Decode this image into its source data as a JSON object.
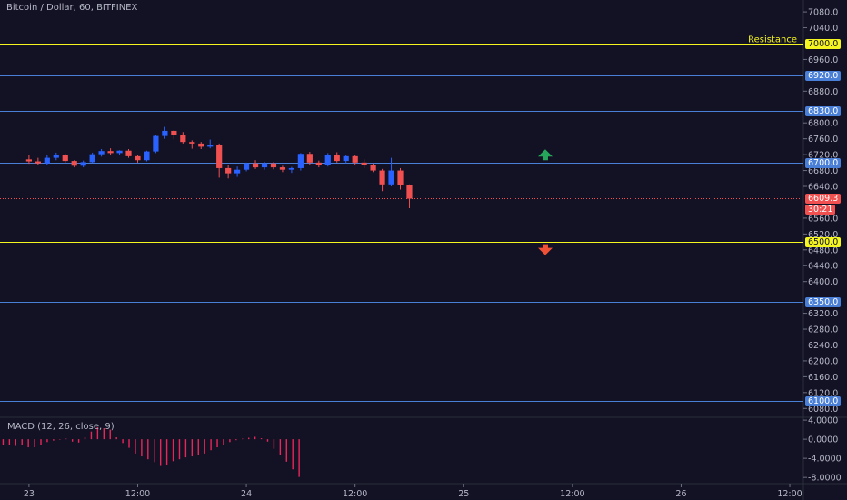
{
  "header": {
    "title": "Bitcoin / Dollar, 60, BITFINEX"
  },
  "macd": {
    "label": "MACD (12, 26, close, 9)",
    "ticks": [
      "4.0000",
      "0.0000",
      "-4.0000",
      "-8.0000"
    ],
    "tick_values": [
      4,
      0,
      -4,
      -8
    ],
    "histogram": [
      -1.3,
      -1.3,
      -1.3,
      -1.4,
      -1.2,
      -1.7,
      -1.7,
      -1.2,
      -0.6,
      -0.3,
      -0.1,
      0.1,
      -0.5,
      -0.7,
      0.4,
      1.6,
      2.5,
      2.3,
      2.0,
      0.4,
      -0.8,
      -1.8,
      -3.0,
      -3.6,
      -4.2,
      -4.8,
      -5.6,
      -5.3,
      -4.6,
      -4.2,
      -3.8,
      -3.6,
      -3.3,
      -3.0,
      -2.3,
      -1.7,
      -1.2,
      -0.6,
      -0.2,
      0.1,
      0.3,
      0.5,
      0.2,
      -0.5,
      -2.0,
      -3.3,
      -4.7,
      -6.3,
      -7.9
    ],
    "color": "#e6275a"
  },
  "colors": {
    "background": "#131225",
    "up": "#2962ff",
    "down": "#f05050",
    "resistance": "#f5f520",
    "level": "#4a7fd8",
    "arrow_up": "#26a65b",
    "arrow_down": "#ef5036"
  },
  "chart_data": {
    "type": "candlestick",
    "title": "Bitcoin / Dollar, 60, BITFINEX",
    "y_ticks": [
      "7080.0",
      "7040.0",
      "6960.0",
      "6880.0",
      "6800.0",
      "6760.0",
      "6720.0",
      "6680.0",
      "6640.0",
      "6560.0",
      "6520.0",
      "6480.0",
      "6440.0",
      "6400.0",
      "6320.0",
      "6280.0",
      "6240.0",
      "6200.0",
      "6160.0",
      "6120.0",
      "6080.0"
    ],
    "y_tick_values": [
      7080,
      7040,
      6960,
      6880,
      6800,
      6760,
      6720,
      6680,
      6640,
      6560,
      6520,
      6480,
      6440,
      6400,
      6320,
      6280,
      6240,
      6200,
      6160,
      6120,
      6080
    ],
    "ylim": [
      6060,
      7110
    ],
    "x_ticks": [
      "23",
      "12:00",
      "24",
      "12:00",
      "25",
      "12:00",
      "26",
      "12:00"
    ],
    "x_tick_values": [
      0,
      12,
      24,
      36,
      48,
      60,
      72,
      84
    ],
    "xlim": [
      -3.2,
      85.5
    ],
    "horizontal_lines": [
      {
        "price": 7000,
        "label": "7000.0",
        "kind": "resistance",
        "note": "Resistance"
      },
      {
        "price": 6920,
        "label": "6920.0",
        "kind": "level"
      },
      {
        "price": 6830,
        "label": "6830.0",
        "kind": "level"
      },
      {
        "price": 6700,
        "label": "6700.0",
        "kind": "level"
      },
      {
        "price": 6500,
        "label": "6500.0",
        "kind": "resistance"
      },
      {
        "price": 6350,
        "label": "6350.0",
        "kind": "level"
      },
      {
        "price": 6100,
        "label": "6100.0",
        "kind": "level"
      }
    ],
    "last_price": {
      "price": 6609.3,
      "label": "6609.3",
      "countdown": "30:21"
    },
    "arrows": [
      {
        "x": 57,
        "price": 6715,
        "direction": "up"
      },
      {
        "x": 57,
        "price": 6485,
        "direction": "down"
      }
    ],
    "candles": [
      {
        "o": 6708,
        "h": 6718,
        "l": 6697,
        "c": 6703
      },
      {
        "o": 6703,
        "h": 6712,
        "l": 6693,
        "c": 6698
      },
      {
        "o": 6698,
        "h": 6720,
        "l": 6695,
        "c": 6712
      },
      {
        "o": 6712,
        "h": 6725,
        "l": 6706,
        "c": 6718
      },
      {
        "o": 6718,
        "h": 6722,
        "l": 6700,
        "c": 6704
      },
      {
        "o": 6704,
        "h": 6706,
        "l": 6688,
        "c": 6692
      },
      {
        "o": 6692,
        "h": 6705,
        "l": 6688,
        "c": 6701
      },
      {
        "o": 6701,
        "h": 6725,
        "l": 6699,
        "c": 6721
      },
      {
        "o": 6721,
        "h": 6734,
        "l": 6715,
        "c": 6729
      },
      {
        "o": 6729,
        "h": 6736,
        "l": 6718,
        "c": 6724
      },
      {
        "o": 6724,
        "h": 6731,
        "l": 6719,
        "c": 6730
      },
      {
        "o": 6730,
        "h": 6734,
        "l": 6712,
        "c": 6716
      },
      {
        "o": 6716,
        "h": 6719,
        "l": 6700,
        "c": 6706
      },
      {
        "o": 6706,
        "h": 6730,
        "l": 6703,
        "c": 6728
      },
      {
        "o": 6728,
        "h": 6770,
        "l": 6724,
        "c": 6767
      },
      {
        "o": 6767,
        "h": 6790,
        "l": 6760,
        "c": 6780
      },
      {
        "o": 6780,
        "h": 6782,
        "l": 6759,
        "c": 6770
      },
      {
        "o": 6770,
        "h": 6777,
        "l": 6748,
        "c": 6752
      },
      {
        "o": 6752,
        "h": 6756,
        "l": 6735,
        "c": 6748
      },
      {
        "o": 6748,
        "h": 6752,
        "l": 6734,
        "c": 6740
      },
      {
        "o": 6740,
        "h": 6758,
        "l": 6736,
        "c": 6744
      },
      {
        "o": 6744,
        "h": 6748,
        "l": 6662,
        "c": 6686
      },
      {
        "o": 6686,
        "h": 6694,
        "l": 6660,
        "c": 6673
      },
      {
        "o": 6673,
        "h": 6690,
        "l": 6664,
        "c": 6682
      },
      {
        "o": 6682,
        "h": 6700,
        "l": 6678,
        "c": 6698
      },
      {
        "o": 6698,
        "h": 6706,
        "l": 6684,
        "c": 6688
      },
      {
        "o": 6688,
        "h": 6702,
        "l": 6682,
        "c": 6698
      },
      {
        "o": 6698,
        "h": 6701,
        "l": 6683,
        "c": 6688
      },
      {
        "o": 6688,
        "h": 6692,
        "l": 6676,
        "c": 6682
      },
      {
        "o": 6682,
        "h": 6689,
        "l": 6674,
        "c": 6686
      },
      {
        "o": 6686,
        "h": 6724,
        "l": 6680,
        "c": 6722
      },
      {
        "o": 6722,
        "h": 6727,
        "l": 6695,
        "c": 6700
      },
      {
        "o": 6700,
        "h": 6705,
        "l": 6688,
        "c": 6694
      },
      {
        "o": 6694,
        "h": 6724,
        "l": 6690,
        "c": 6720
      },
      {
        "o": 6720,
        "h": 6726,
        "l": 6700,
        "c": 6704
      },
      {
        "o": 6704,
        "h": 6720,
        "l": 6698,
        "c": 6716
      },
      {
        "o": 6716,
        "h": 6720,
        "l": 6694,
        "c": 6700
      },
      {
        "o": 6700,
        "h": 6708,
        "l": 6686,
        "c": 6694
      },
      {
        "o": 6694,
        "h": 6698,
        "l": 6676,
        "c": 6680
      },
      {
        "o": 6680,
        "h": 6684,
        "l": 6628,
        "c": 6645
      },
      {
        "o": 6645,
        "h": 6712,
        "l": 6640,
        "c": 6680
      },
      {
        "o": 6680,
        "h": 6686,
        "l": 6632,
        "c": 6643
      },
      {
        "o": 6643,
        "h": 6645,
        "l": 6585,
        "c": 6609
      }
    ]
  }
}
